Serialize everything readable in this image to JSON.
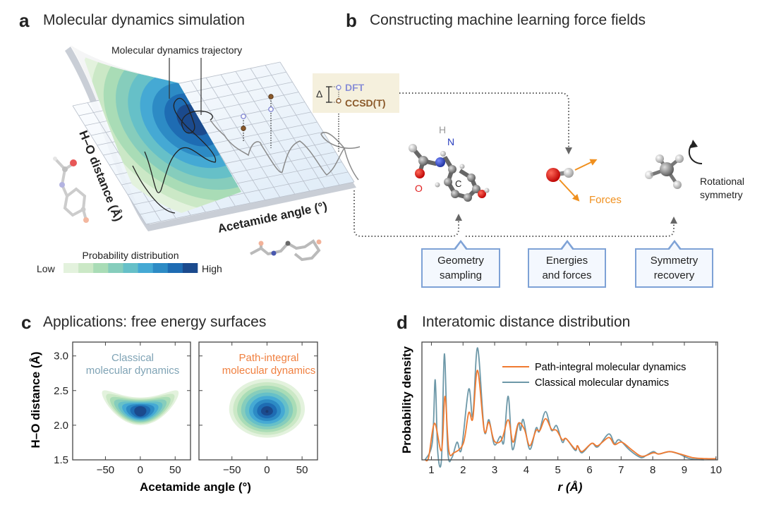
{
  "panel_a": {
    "letter": "a",
    "title": "Molecular dynamics simulation",
    "trajectory_label": "Molecular dynamics trajectory",
    "y_axis_label": "H–O distance (Å)",
    "x_axis_label": "Acetamide angle (°)",
    "delta_symbol": "Δ",
    "dft_label": "DFT",
    "ccsd_label": "CCSD(T)",
    "colorbar": {
      "title": "Probability distribution",
      "low": "Low",
      "high": "High",
      "colors": [
        "#e3f2dd",
        "#cbe8c6",
        "#a9dcb6",
        "#86cdbc",
        "#66c0c8",
        "#45a9d4",
        "#2d8bc5",
        "#1e6cb3",
        "#1b4a8d"
      ]
    },
    "colors": {
      "dft": "#8a8fd6",
      "ccsd": "#8b5a2b"
    }
  },
  "panel_b": {
    "letter": "b",
    "title": "Constructing machine learning force fields",
    "atom_labels": {
      "h": "H",
      "n": "N",
      "o": "O",
      "c": "C"
    },
    "forces_label": "Forces",
    "rotational_label_1": "Rotational",
    "rotational_label_2": "symmetry",
    "boxes": [
      {
        "line1": "Geometry",
        "line2": "sampling"
      },
      {
        "line1": "Energies",
        "line2": "and forces"
      },
      {
        "line1": "Symmetry",
        "line2": "recovery"
      }
    ],
    "colors": {
      "forces": "#f0901e",
      "box_border": "#7ea2d6"
    }
  },
  "panel_c": {
    "letter": "c",
    "title": "Applications: free energy surfaces",
    "left_label_1": "Classical",
    "left_label_2": "molecular dynamics",
    "right_label_1": "Path-integral",
    "right_label_2": "molecular dynamics",
    "label_colors": {
      "classical": "#7fa3b5",
      "pimd": "#f08040"
    }
  },
  "panel_d": {
    "letter": "d",
    "title": "Interatomic distance distribution"
  },
  "chart_data": [
    {
      "type": "heatmap",
      "title": "Applications: free energy surfaces",
      "xlabel": "Acetamide angle (°)",
      "ylabel": "H–O distance (Å)",
      "xlim": [
        -97,
        72
      ],
      "ylim": [
        1.5,
        3.2
      ],
      "xticks": [
        "−50",
        "0",
        "50"
      ],
      "xtick_values": [
        -50,
        0,
        50
      ],
      "yticks": [
        "1.5",
        "2.0",
        "2.5",
        "3.0"
      ],
      "ytick_values": [
        1.5,
        2.0,
        2.5,
        3.0
      ],
      "panels": [
        {
          "name": "Classical molecular dynamics",
          "shape": "banana",
          "center": [
            0,
            2.2
          ],
          "outer_half_width": 55,
          "outer_half_height": 0.2,
          "bend": 0.22
        },
        {
          "name": "Path-integral molecular dynamics",
          "shape": "egg",
          "center": [
            0,
            2.2
          ],
          "outer_half_width": 54,
          "outer_top": 0.47,
          "outer_bottom": 0.38,
          "bend": 0.05
        }
      ]
    },
    {
      "type": "line",
      "title": "Interatomic distance distribution",
      "xlabel": "r (Å)",
      "ylabel": "Probability density",
      "xlim": [
        0.7,
        10.05
      ],
      "ylim": [
        0,
        1
      ],
      "xticks": [
        "1",
        "2",
        "3",
        "4",
        "5",
        "6",
        "7",
        "8",
        "9",
        "10"
      ],
      "xtick_values": [
        1,
        2,
        3,
        4,
        5,
        6,
        7,
        8,
        9,
        10
      ],
      "legend_position": "top-right",
      "series": [
        {
          "name": "Path-integral molecular dynamics",
          "color": "#f07a30",
          "x": [
            0.8,
            0.91,
            1.1,
            1.32,
            1.43,
            1.55,
            1.71,
            2.01,
            2.18,
            2.31,
            2.46,
            2.67,
            2.82,
            2.99,
            3.22,
            3.43,
            3.58,
            3.75,
            3.94,
            4.11,
            4.31,
            4.43,
            4.61,
            4.8,
            4.96,
            5.14,
            5.26,
            5.55,
            5.62,
            5.76,
            6.07,
            6.26,
            6.61,
            6.79,
            7.02,
            7.36,
            7.66,
            8.02,
            8.19,
            8.53,
            8.87,
            9.25,
            9.7,
            10.0
          ],
          "y": [
            0,
            0.02,
            0.31,
            0.08,
            0.54,
            0.08,
            0.06,
            0.14,
            0.4,
            0.35,
            0.76,
            0.25,
            0.32,
            0.16,
            0.17,
            0.34,
            0.15,
            0.31,
            0.26,
            0.12,
            0.25,
            0.25,
            0.35,
            0.26,
            0.25,
            0.17,
            0.18,
            0.09,
            0.12,
            0.07,
            0.14,
            0.12,
            0.19,
            0.13,
            0.15,
            0.08,
            0.03,
            0.06,
            0.05,
            0.07,
            0.05,
            0.02,
            0.01,
            0.01
          ]
        },
        {
          "name": "Classical molecular dynamics",
          "color": "#6d98a8",
          "x": [
            0.8,
            1.03,
            1.12,
            1.2,
            1.32,
            1.41,
            1.52,
            1.65,
            1.81,
            1.95,
            2.18,
            2.31,
            2.46,
            2.67,
            2.82,
            2.99,
            3.18,
            3.29,
            3.43,
            3.56,
            3.75,
            3.82,
            3.91,
            4.11,
            4.31,
            4.41,
            4.61,
            4.8,
            4.96,
            5.14,
            5.26,
            5.55,
            5.62,
            5.76,
            6.07,
            6.26,
            6.61,
            6.79,
            6.94,
            7.28,
            7.62,
            7.81,
            8.02,
            8.19,
            8.53,
            8.83,
            9.17,
            9.62
          ],
          "y": [
            0,
            0.15,
            0.68,
            0.07,
            0.01,
            0.9,
            0.07,
            0.02,
            0.15,
            0.09,
            0.6,
            0.37,
            0.95,
            0.25,
            0.34,
            0.13,
            0.2,
            0.15,
            0.54,
            0.09,
            0.31,
            0.25,
            0.34,
            0.09,
            0.27,
            0.24,
            0.41,
            0.25,
            0.29,
            0.15,
            0.18,
            0.08,
            0.12,
            0.06,
            0.14,
            0.11,
            0.22,
            0.14,
            0.17,
            0.08,
            0.02,
            0.04,
            0.07,
            0.05,
            0.07,
            0.05,
            0.01,
            0
          ]
        }
      ]
    }
  ]
}
